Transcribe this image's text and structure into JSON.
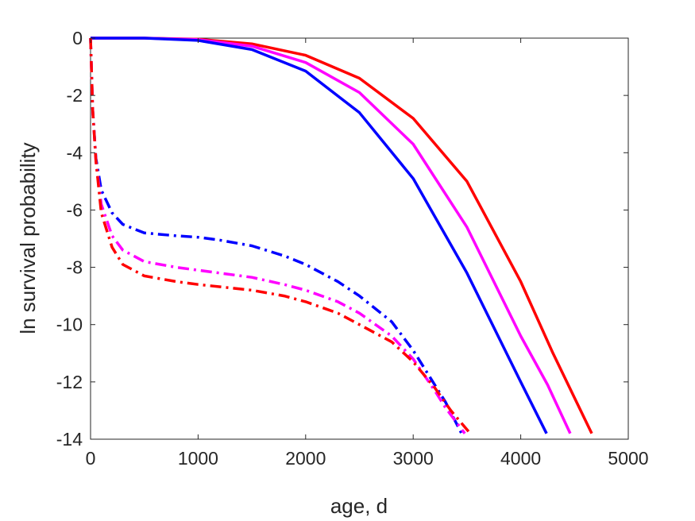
{
  "chart_data": {
    "type": "line",
    "xlabel": "age, d",
    "ylabel": "ln survival probability",
    "xlim": [
      0,
      5000
    ],
    "ylim": [
      -14,
      0
    ],
    "xticks": [
      0,
      1000,
      2000,
      3000,
      4000,
      5000
    ],
    "yticks": [
      0,
      -2,
      -4,
      -6,
      -8,
      -10,
      -12,
      -14
    ],
    "grid": false,
    "legend": null,
    "colors": {
      "red": "#ff0000",
      "magenta": "#ff00ff",
      "blue": "#0000ff"
    },
    "series": [
      {
        "color": "#ff0000",
        "style": "solid",
        "points": [
          [
            0,
            0
          ],
          [
            500,
            0
          ],
          [
            1000,
            -0.04
          ],
          [
            1500,
            -0.2
          ],
          [
            2000,
            -0.6
          ],
          [
            2500,
            -1.4
          ],
          [
            3000,
            -2.8
          ],
          [
            3500,
            -5.0
          ],
          [
            4000,
            -8.5
          ],
          [
            4300,
            -11.0
          ],
          [
            4660,
            -13.8
          ]
        ]
      },
      {
        "color": "#ff00ff",
        "style": "solid",
        "points": [
          [
            0,
            0
          ],
          [
            500,
            0
          ],
          [
            1000,
            -0.05
          ],
          [
            1500,
            -0.28
          ],
          [
            2000,
            -0.85
          ],
          [
            2500,
            -1.9
          ],
          [
            3000,
            -3.7
          ],
          [
            3500,
            -6.6
          ],
          [
            4000,
            -10.4
          ],
          [
            4250,
            -12.1
          ],
          [
            4460,
            -13.8
          ]
        ]
      },
      {
        "color": "#0000ff",
        "style": "solid",
        "points": [
          [
            0,
            0
          ],
          [
            500,
            0
          ],
          [
            1000,
            -0.08
          ],
          [
            1500,
            -0.4
          ],
          [
            2000,
            -1.15
          ],
          [
            2500,
            -2.6
          ],
          [
            3000,
            -4.9
          ],
          [
            3500,
            -8.2
          ],
          [
            4000,
            -12.0
          ],
          [
            4240,
            -13.8
          ]
        ]
      },
      {
        "color": "#0000ff",
        "style": "dashdot",
        "points": [
          [
            0,
            0
          ],
          [
            20,
            -2.5
          ],
          [
            50,
            -4.2
          ],
          [
            100,
            -5.3
          ],
          [
            200,
            -6.1
          ],
          [
            300,
            -6.5
          ],
          [
            500,
            -6.8
          ],
          [
            800,
            -6.9
          ],
          [
            1000,
            -6.95
          ],
          [
            1200,
            -7.05
          ],
          [
            1500,
            -7.25
          ],
          [
            1800,
            -7.6
          ],
          [
            2000,
            -7.9
          ],
          [
            2300,
            -8.5
          ],
          [
            2500,
            -9.0
          ],
          [
            2800,
            -9.9
          ],
          [
            3000,
            -10.9
          ],
          [
            3200,
            -12.1
          ],
          [
            3300,
            -12.7
          ],
          [
            3450,
            -13.8
          ]
        ]
      },
      {
        "color": "#ff00ff",
        "style": "dashdot",
        "points": [
          [
            0,
            0
          ],
          [
            20,
            -2.5
          ],
          [
            50,
            -4.3
          ],
          [
            100,
            -5.8
          ],
          [
            200,
            -6.9
          ],
          [
            300,
            -7.4
          ],
          [
            500,
            -7.8
          ],
          [
            800,
            -8.0
          ],
          [
            1000,
            -8.1
          ],
          [
            1500,
            -8.35
          ],
          [
            1800,
            -8.6
          ],
          [
            2000,
            -8.8
          ],
          [
            2300,
            -9.2
          ],
          [
            2500,
            -9.6
          ],
          [
            2800,
            -10.4
          ],
          [
            3000,
            -11.2
          ],
          [
            3200,
            -12.3
          ],
          [
            3300,
            -12.9
          ],
          [
            3480,
            -13.8
          ]
        ]
      },
      {
        "color": "#ff0000",
        "style": "dashdot",
        "points": [
          [
            0,
            0
          ],
          [
            20,
            -2.5
          ],
          [
            50,
            -4.3
          ],
          [
            100,
            -6.1
          ],
          [
            200,
            -7.3
          ],
          [
            300,
            -7.9
          ],
          [
            500,
            -8.3
          ],
          [
            800,
            -8.5
          ],
          [
            1000,
            -8.6
          ],
          [
            1500,
            -8.8
          ],
          [
            1800,
            -9.0
          ],
          [
            2000,
            -9.2
          ],
          [
            2300,
            -9.6
          ],
          [
            2500,
            -10.0
          ],
          [
            2800,
            -10.6
          ],
          [
            3000,
            -11.3
          ],
          [
            3200,
            -12.2
          ],
          [
            3350,
            -13.0
          ],
          [
            3530,
            -13.8
          ]
        ]
      }
    ]
  }
}
